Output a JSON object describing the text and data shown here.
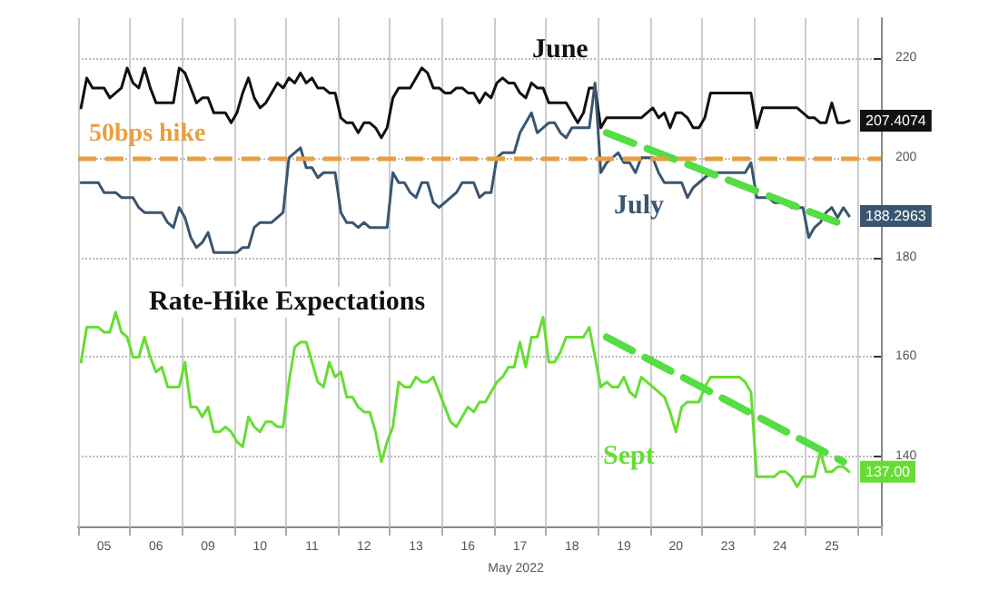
{
  "chart_data": {
    "type": "line",
    "xlabel": "May 2022",
    "annotations": [
      "Rate-Hike Expectations"
    ],
    "categories": [
      null,
      null,
      null,
      null,
      "05",
      null,
      null,
      null,
      null,
      null,
      null,
      null,
      null,
      "06",
      null,
      null,
      null,
      null,
      null,
      null,
      null,
      null,
      "09",
      null,
      null,
      null,
      null,
      null,
      null,
      null,
      null,
      "10",
      null,
      null,
      null,
      null,
      null,
      null,
      null,
      null,
      "11",
      null,
      null,
      null,
      null,
      null,
      null,
      null,
      null,
      "12",
      null,
      null,
      null,
      null,
      null,
      null,
      null,
      null,
      "13",
      null,
      null,
      null,
      null,
      null,
      null,
      null,
      null,
      "16",
      null,
      null,
      null,
      null,
      null,
      null,
      null,
      null,
      "17",
      null,
      null,
      null,
      null,
      null,
      null,
      null,
      null,
      "18",
      null,
      null,
      null,
      null,
      null,
      null,
      null,
      null,
      "19",
      null,
      null,
      null,
      null,
      null,
      null,
      null,
      null,
      "20",
      null,
      null,
      null,
      null,
      null,
      null,
      null,
      null,
      "23",
      null,
      null,
      null,
      null,
      null,
      null,
      null,
      null,
      "24",
      null,
      null,
      null,
      null,
      null,
      null,
      null,
      null,
      "25",
      null,
      null,
      null,
      null,
      null,
      null,
      null,
      null
    ],
    "ylim": [
      126,
      228
    ],
    "yticks": [
      140,
      160,
      180,
      200,
      220
    ],
    "grid": true,
    "legend": false,
    "line_style": "solid",
    "marker": "none",
    "ref_lines": [
      {
        "axis": "y",
        "value": 200,
        "label": "50bps hike",
        "color": "#e8a040",
        "line_style": "dashed"
      }
    ],
    "series": [
      {
        "name": "June",
        "color": "#111111",
        "values": [
          210,
          216,
          214,
          214,
          214,
          212,
          213,
          214,
          218,
          215,
          214,
          218,
          214,
          211,
          211,
          211,
          211,
          218,
          217,
          214,
          211,
          212,
          212,
          209,
          209,
          209,
          207,
          209,
          213,
          216,
          212,
          210,
          211,
          213,
          215,
          214,
          216,
          215,
          217,
          215,
          216,
          214,
          214,
          213,
          213,
          208,
          207,
          207,
          205,
          207,
          207,
          206,
          204,
          206,
          212,
          214,
          214,
          214,
          216,
          218,
          217,
          214,
          214,
          213,
          213,
          214,
          214,
          213,
          213,
          211,
          213,
          212,
          215,
          216,
          215,
          215,
          213,
          212,
          215,
          214,
          214,
          211,
          211,
          211,
          211,
          209,
          207,
          209,
          214,
          214,
          206,
          208,
          208,
          208,
          208,
          208,
          208,
          208,
          209,
          210,
          208,
          209,
          206,
          209,
          209,
          208,
          206,
          206,
          208,
          213,
          213,
          213,
          213,
          213,
          213,
          213,
          213,
          206,
          210,
          210,
          210,
          210,
          210,
          210,
          210,
          209,
          208,
          208,
          207,
          207,
          211,
          207,
          207,
          207.4074,
          null,
          null,
          null,
          null,
          null
        ],
        "value_labels": [
          null,
          null,
          null,
          null,
          null,
          null,
          null,
          null,
          null,
          null,
          null,
          null,
          null,
          null,
          null,
          null,
          null,
          null,
          null,
          null,
          null,
          null,
          null,
          null,
          null,
          null,
          null,
          null,
          null,
          null,
          null,
          null,
          null,
          null,
          null,
          null,
          null,
          null,
          null,
          null,
          null,
          null,
          null,
          null,
          null,
          null,
          null,
          null,
          null,
          null,
          null,
          null,
          null,
          null,
          null,
          null,
          null,
          null,
          null,
          null,
          null,
          null,
          null,
          null,
          null,
          null,
          null,
          null,
          null,
          null,
          null,
          null,
          null,
          null,
          null,
          null,
          null,
          null,
          null,
          null,
          null,
          null,
          null,
          null,
          null,
          null,
          null,
          null,
          null,
          null,
          null,
          null,
          null,
          null,
          null,
          null,
          null,
          null,
          null,
          null,
          null,
          null,
          null,
          null,
          null,
          null,
          null,
          null,
          null,
          null,
          null,
          null,
          null,
          null,
          null,
          null,
          null,
          null,
          null,
          null,
          null,
          null,
          null,
          null,
          null,
          null,
          null,
          null,
          null,
          null,
          null,
          null,
          null,
          "207.4074",
          null,
          null,
          null,
          null,
          null
        ]
      },
      {
        "name": "July",
        "color": "#3a5570",
        "values": [
          195,
          195,
          195,
          195,
          193,
          193,
          193,
          192,
          192,
          192,
          190,
          189,
          189,
          189,
          189,
          187,
          186,
          190,
          188,
          184,
          182,
          183,
          185,
          181,
          181,
          181,
          181,
          181,
          182,
          182,
          186,
          187,
          187,
          187,
          188,
          189,
          200,
          201,
          202,
          198,
          198,
          196,
          197,
          197,
          197,
          189,
          187,
          187,
          186,
          187,
          186,
          186,
          186,
          186,
          197,
          195,
          195,
          193,
          192,
          195,
          195,
          191,
          190,
          191,
          192,
          193,
          195,
          195,
          195,
          192,
          193,
          193,
          200,
          201,
          201,
          201,
          205,
          207,
          209,
          205,
          206,
          207,
          207,
          205,
          204,
          206,
          206,
          206,
          206,
          215,
          197,
          199,
          200,
          201,
          199,
          199,
          197,
          200,
          200,
          200,
          197,
          195,
          195,
          195,
          195,
          192,
          194,
          195,
          196,
          197,
          197,
          197,
          197,
          197,
          197,
          197,
          199,
          192,
          192,
          192,
          191,
          191,
          191,
          190,
          190,
          190,
          184,
          186,
          187,
          189,
          190,
          188,
          190,
          188.2963,
          null,
          null,
          null,
          null,
          null
        ],
        "value_labels": [
          null,
          null,
          null,
          null,
          null,
          null,
          null,
          null,
          null,
          null,
          null,
          null,
          null,
          null,
          null,
          null,
          null,
          null,
          null,
          null,
          null,
          null,
          null,
          null,
          null,
          null,
          null,
          null,
          null,
          null,
          null,
          null,
          null,
          null,
          null,
          null,
          null,
          null,
          null,
          null,
          null,
          null,
          null,
          null,
          null,
          null,
          null,
          null,
          null,
          null,
          null,
          null,
          null,
          null,
          null,
          null,
          null,
          null,
          null,
          null,
          null,
          null,
          null,
          null,
          null,
          null,
          null,
          null,
          null,
          null,
          null,
          null,
          null,
          null,
          null,
          null,
          null,
          null,
          null,
          null,
          null,
          null,
          null,
          null,
          null,
          null,
          null,
          null,
          null,
          null,
          null,
          null,
          null,
          null,
          null,
          null,
          null,
          null,
          null,
          null,
          null,
          null,
          null,
          null,
          null,
          null,
          null,
          null,
          null,
          null,
          null,
          null,
          null,
          null,
          null,
          null,
          null,
          null,
          null,
          null,
          null,
          null,
          null,
          null,
          null,
          null,
          null,
          null,
          null,
          null,
          null,
          null,
          null,
          "188.2963",
          null,
          null,
          null,
          null,
          null
        ]
      },
      {
        "name": "Sept",
        "color": "#66dd33",
        "values": [
          159,
          166,
          166,
          166,
          165,
          165,
          169,
          165,
          164,
          160,
          160,
          164,
          160,
          157,
          158,
          154,
          154,
          154,
          159,
          150,
          150,
          148,
          150,
          145,
          145,
          146,
          145,
          143,
          142,
          148,
          146,
          145,
          147,
          147,
          146,
          146,
          155,
          162,
          163,
          163,
          159,
          155,
          154,
          159,
          156,
          157,
          152,
          152,
          150,
          149,
          149,
          145,
          139,
          143,
          146,
          155,
          154,
          154,
          156,
          155,
          155,
          156,
          153,
          150,
          147,
          146,
          148,
          150,
          149,
          151,
          151,
          153,
          155,
          156,
          158,
          158,
          163,
          158,
          164,
          164,
          168,
          159,
          159,
          161,
          164,
          164,
          164,
          164,
          166,
          160,
          154,
          155,
          154,
          154,
          156,
          153,
          152,
          156,
          155,
          154,
          153,
          152,
          149,
          145,
          150,
          151,
          151,
          151,
          154,
          156,
          156,
          156,
          156,
          156,
          156,
          155,
          153,
          136,
          136,
          136,
          136,
          137,
          137,
          136,
          134,
          136,
          136,
          136,
          141,
          137,
          137,
          138,
          138,
          137,
          null,
          null,
          null,
          null,
          null
        ],
        "value_labels": [
          null,
          null,
          null,
          null,
          null,
          null,
          null,
          null,
          null,
          null,
          null,
          null,
          null,
          null,
          null,
          null,
          null,
          null,
          null,
          null,
          null,
          null,
          null,
          null,
          null,
          null,
          null,
          null,
          null,
          null,
          null,
          null,
          null,
          null,
          null,
          null,
          null,
          null,
          null,
          null,
          null,
          null,
          null,
          null,
          null,
          null,
          null,
          null,
          null,
          null,
          null,
          null,
          null,
          null,
          null,
          null,
          null,
          null,
          null,
          null,
          null,
          null,
          null,
          null,
          null,
          null,
          null,
          null,
          null,
          null,
          null,
          null,
          null,
          null,
          null,
          null,
          null,
          null,
          null,
          null,
          null,
          null,
          null,
          null,
          null,
          null,
          null,
          null,
          null,
          null,
          null,
          null,
          null,
          null,
          null,
          null,
          null,
          null,
          null,
          null,
          null,
          null,
          null,
          null,
          null,
          null,
          null,
          null,
          null,
          null,
          null,
          null,
          null,
          null,
          null,
          null,
          null,
          null,
          null,
          null,
          null,
          null,
          null,
          null,
          null,
          null,
          null,
          null,
          null,
          null,
          null,
          null,
          null,
          "137.00",
          null,
          null,
          null,
          null,
          null
        ]
      },
      {
        "type": "line",
        "color": "#55dd44",
        "line_style": "dashed",
        "values": [
          null,
          null,
          null,
          null,
          null,
          null,
          null,
          null,
          null,
          null,
          null,
          null,
          null,
          null,
          null,
          null,
          null,
          null,
          null,
          null,
          null,
          null,
          null,
          null,
          null,
          null,
          null,
          null,
          null,
          null,
          null,
          null,
          null,
          null,
          null,
          null,
          null,
          null,
          null,
          null,
          null,
          null,
          null,
          null,
          null,
          null,
          null,
          null,
          null,
          null,
          null,
          null,
          null,
          null,
          null,
          null,
          null,
          null,
          null,
          null,
          null,
          null,
          null,
          null,
          null,
          null,
          null,
          null,
          null,
          null,
          null,
          null,
          null,
          null,
          null,
          null,
          null,
          null,
          null,
          null,
          null,
          null,
          null,
          null,
          null,
          null,
          null,
          null,
          null,
          null,
          null,
          205,
          null,
          null,
          null,
          null,
          null,
          null,
          null,
          null,
          null,
          null,
          null,
          null,
          null,
          null,
          null,
          null,
          null,
          null,
          null,
          null,
          null,
          null,
          null,
          null,
          null,
          null,
          null,
          null,
          null,
          null,
          null,
          null,
          null,
          null,
          null,
          null,
          null,
          null,
          null,
          187,
          null,
          null,
          null,
          null,
          null,
          null,
          null
        ]
      },
      {
        "type": "line",
        "color": "#55dd44",
        "line_style": "dashed",
        "values": [
          null,
          null,
          null,
          null,
          null,
          null,
          null,
          null,
          null,
          null,
          null,
          null,
          null,
          null,
          null,
          null,
          null,
          null,
          null,
          null,
          null,
          null,
          null,
          null,
          null,
          null,
          null,
          null,
          null,
          null,
          null,
          null,
          null,
          null,
          null,
          null,
          null,
          null,
          null,
          null,
          null,
          null,
          null,
          null,
          null,
          null,
          null,
          null,
          null,
          null,
          null,
          null,
          null,
          null,
          null,
          null,
          null,
          null,
          null,
          null,
          null,
          null,
          null,
          null,
          null,
          null,
          null,
          null,
          null,
          null,
          null,
          null,
          null,
          null,
          null,
          null,
          null,
          null,
          null,
          null,
          null,
          null,
          null,
          null,
          null,
          null,
          null,
          null,
          null,
          null,
          null,
          164,
          null,
          null,
          null,
          null,
          null,
          null,
          null,
          null,
          null,
          null,
          null,
          null,
          null,
          null,
          null,
          null,
          null,
          null,
          null,
          null,
          null,
          null,
          null,
          null,
          null,
          null,
          null,
          null,
          null,
          null,
          null,
          null,
          null,
          null,
          null,
          null,
          null,
          null,
          null,
          null,
          139,
          null,
          null,
          null,
          null,
          null,
          null
        ]
      }
    ]
  }
}
